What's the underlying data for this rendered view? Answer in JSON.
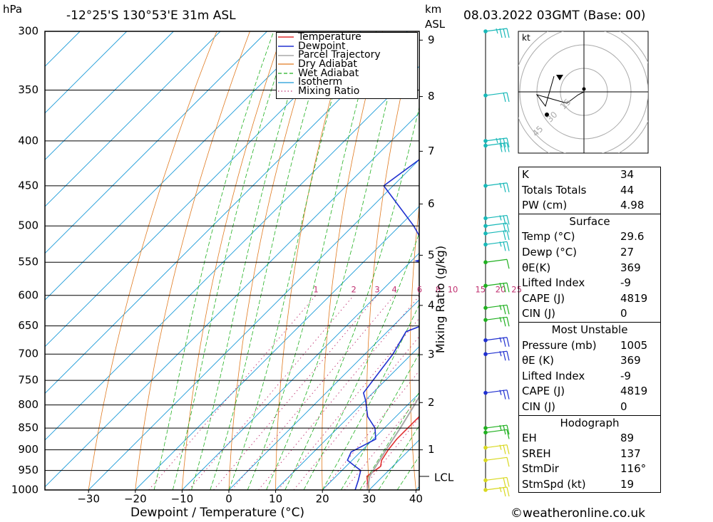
{
  "header": {
    "location": "-12°25'S 130°53'E 31m ASL",
    "datetime": "08.03.2022 03GMT (Base: 00)",
    "hpa_label": "hPa",
    "km_label": "km",
    "asl_label": "ASL"
  },
  "footer": {
    "copyright": "©weatheronline.co.uk"
  },
  "chart_data": {
    "type": "line",
    "title": "-12°25'S 130°53'E 31m ASL",
    "xlabel": "Dewpoint / Temperature (°C)",
    "ylabel": "hPa",
    "y2label": "Mixing Ratio (g/kg)",
    "xlim": [
      -40,
      40
    ],
    "ylim": [
      1000,
      300
    ],
    "xticks": [
      -30,
      -20,
      -10,
      0,
      10,
      20,
      30,
      40
    ],
    "pressure_levels": [
      300,
      350,
      400,
      450,
      500,
      550,
      600,
      650,
      700,
      750,
      800,
      850,
      900,
      950,
      1000
    ],
    "km_ticks": [
      {
        "km": "1",
        "p": 900
      },
      {
        "km": "2",
        "p": 795
      },
      {
        "km": "3",
        "p": 701
      },
      {
        "km": "4",
        "p": 616
      },
      {
        "km": "5",
        "p": 540
      },
      {
        "km": "6",
        "p": 472
      },
      {
        "km": "7",
        "p": 411
      },
      {
        "km": "8",
        "p": 356
      },
      {
        "km": "9",
        "p": 307
      }
    ],
    "lcl": {
      "label": "LCL",
      "p": 965
    },
    "mixing_ratio_labels": [
      "1",
      "2",
      "3",
      "4",
      "6",
      "8",
      "10",
      "15",
      "20",
      "25"
    ],
    "legend": [
      "Temperature",
      "Dewpoint",
      "Parcel Trajectory",
      "Dry Adiabat",
      "Wet Adiabat",
      "Isotherm",
      "Mixing Ratio"
    ],
    "colors": {
      "temperature": "#e03030",
      "dewpoint": "#2030d0",
      "parcel": "#a8a8a8",
      "dry_adiabat": "#e07a20",
      "wet_adiabat": "#20b020",
      "isotherm": "#1a9ad8",
      "mixing_ratio": "#c03070",
      "wind_low": "#2030d0",
      "wind_mid": "#20b020",
      "wind_high": "#18b8b8",
      "wind_sfc": "#d8d820"
    },
    "series": [
      {
        "name": "Temperature",
        "points": [
          [
            1000,
            29.6
          ],
          [
            980,
            28.0
          ],
          [
            965,
            26.6
          ],
          [
            940,
            27.4
          ],
          [
            925,
            26.3
          ],
          [
            900,
            25.5
          ],
          [
            875,
            25.0
          ],
          [
            850,
            25.0
          ],
          [
            825,
            25.0
          ],
          [
            800,
            24.0
          ],
          [
            775,
            23.0
          ],
          [
            750,
            21.7
          ],
          [
            725,
            20.0
          ],
          [
            700,
            18.3
          ],
          [
            675,
            16.6
          ],
          [
            650,
            15.0
          ],
          [
            625,
            13.3
          ],
          [
            600,
            12.0
          ],
          [
            575,
            11.1
          ],
          [
            550,
            9.4
          ],
          [
            540,
            8.5
          ],
          [
            525,
            6.4
          ],
          [
            500,
            4.8
          ],
          [
            475,
            2.3
          ],
          [
            450,
            0.3
          ],
          [
            425,
            -2.2
          ],
          [
            400,
            -4.8
          ],
          [
            375,
            -7.7
          ],
          [
            350,
            -11.3
          ],
          [
            300,
            -17.0
          ]
        ]
      },
      {
        "name": "Dewpoint",
        "points": [
          [
            1000,
            27.0
          ],
          [
            975,
            25.6
          ],
          [
            950,
            24.0
          ],
          [
            935,
            21.0
          ],
          [
            925,
            19.0
          ],
          [
            905,
            18.0
          ],
          [
            875,
            20.5
          ],
          [
            850,
            18.0
          ],
          [
            825,
            14.0
          ],
          [
            790,
            10.0
          ],
          [
            775,
            8.0
          ],
          [
            700,
            6.0
          ],
          [
            660,
            4.0
          ],
          [
            640,
            8.0
          ],
          [
            620,
            4.0
          ],
          [
            600,
            5.0
          ],
          [
            580,
            -1.0
          ],
          [
            560,
            -3.0
          ],
          [
            548,
            -9.0
          ],
          [
            530,
            0.0
          ],
          [
            520,
            -12.0
          ],
          [
            500,
            -17.0
          ],
          [
            450,
            -32.0
          ],
          [
            420,
            -30.0
          ],
          [
            405,
            -2.0
          ],
          [
            398,
            -2.5
          ],
          [
            390,
            -3.0
          ],
          [
            365,
            -4.0
          ],
          [
            360,
            -6.0
          ],
          [
            350,
            -6.0
          ],
          [
            320,
            -20.0
          ],
          [
            308,
            -19.0
          ],
          [
            300,
            -35.0
          ]
        ]
      },
      {
        "name": "Parcel Trajectory",
        "points": [
          [
            1000,
            29.6
          ],
          [
            965,
            27.2
          ],
          [
            900,
            25.0
          ],
          [
            850,
            23.4
          ],
          [
            800,
            21.5
          ],
          [
            750,
            19.3
          ],
          [
            700,
            16.7
          ],
          [
            650,
            13.8
          ],
          [
            600,
            10.4
          ],
          [
            550,
            6.4
          ],
          [
            500,
            1.9
          ],
          [
            450,
            -3.4
          ],
          [
            400,
            -9.6
          ],
          [
            370,
            -13.5
          ]
        ]
      }
    ],
    "wind_barbs": [
      {
        "p": 300,
        "speed_kt": 25,
        "color": "wind_high"
      },
      {
        "p": 355,
        "speed_kt": 20,
        "color": "wind_high"
      },
      {
        "p": 400,
        "speed_kt": 25,
        "color": "wind_high"
      },
      {
        "p": 405,
        "speed_kt": 30,
        "color": "wind_high"
      },
      {
        "p": 450,
        "speed_kt": 15,
        "color": "wind_high"
      },
      {
        "p": 490,
        "speed_kt": 15,
        "color": "wind_high"
      },
      {
        "p": 500,
        "speed_kt": 20,
        "color": "wind_high"
      },
      {
        "p": 510,
        "speed_kt": 20,
        "color": "wind_high"
      },
      {
        "p": 525,
        "speed_kt": 15,
        "color": "wind_high"
      },
      {
        "p": 550,
        "speed_kt": 10,
        "color": "wind_mid"
      },
      {
        "p": 585,
        "speed_kt": 15,
        "color": "wind_mid"
      },
      {
        "p": 620,
        "speed_kt": 15,
        "color": "wind_mid"
      },
      {
        "p": 640,
        "speed_kt": 15,
        "color": "wind_mid"
      },
      {
        "p": 675,
        "speed_kt": 15,
        "color": "wind_low"
      },
      {
        "p": 700,
        "speed_kt": 15,
        "color": "wind_low"
      },
      {
        "p": 775,
        "speed_kt": 15,
        "color": "wind_low"
      },
      {
        "p": 850,
        "speed_kt": 15,
        "color": "wind_mid"
      },
      {
        "p": 860,
        "speed_kt": 10,
        "color": "wind_mid"
      },
      {
        "p": 895,
        "speed_kt": 15,
        "color": "wind_sfc"
      },
      {
        "p": 925,
        "speed_kt": 10,
        "color": "wind_sfc"
      },
      {
        "p": 975,
        "speed_kt": 20,
        "color": "wind_sfc"
      },
      {
        "p": 1000,
        "speed_kt": 15,
        "color": "wind_sfc"
      }
    ],
    "hodograph": {
      "unit_label": "kt",
      "rings": [
        15,
        30,
        45
      ],
      "points": [
        [
          -21,
          -11
        ],
        [
          -27,
          10
        ],
        [
          -33,
          2
        ],
        [
          -12,
          8
        ],
        [
          -4,
          2
        ],
        [
          0,
          0
        ]
      ],
      "marker": [
        -26,
        -16
      ],
      "storm": [
        -17,
        10
      ]
    }
  },
  "stats": {
    "top": [
      {
        "label": "K",
        "value": "34"
      },
      {
        "label": "Totals Totals",
        "value": "44"
      },
      {
        "label": "PW (cm)",
        "value": "4.98"
      }
    ],
    "surface_title": "Surface",
    "surface": [
      {
        "label": "Temp (°C)",
        "value": "29.6"
      },
      {
        "label": "Dewp (°C)",
        "value": "27"
      },
      {
        "label": "θE(K)",
        "value": "369"
      },
      {
        "label": "Lifted Index",
        "value": "-9"
      },
      {
        "label": "CAPE (J)",
        "value": "4819"
      },
      {
        "label": "CIN (J)",
        "value": "0"
      }
    ],
    "mu_title": "Most Unstable",
    "mu": [
      {
        "label": "Pressure (mb)",
        "value": "1005"
      },
      {
        "label": "θE (K)",
        "value": "369"
      },
      {
        "label": "Lifted Index",
        "value": "-9"
      },
      {
        "label": "CAPE (J)",
        "value": "4819"
      },
      {
        "label": "CIN (J)",
        "value": "0"
      }
    ],
    "hodo_title": "Hodograph",
    "hodo": [
      {
        "label": "EH",
        "value": "89"
      },
      {
        "label": "SREH",
        "value": "137"
      },
      {
        "label": "StmDir",
        "value": "116°"
      },
      {
        "label": "StmSpd (kt)",
        "value": "19"
      }
    ]
  }
}
